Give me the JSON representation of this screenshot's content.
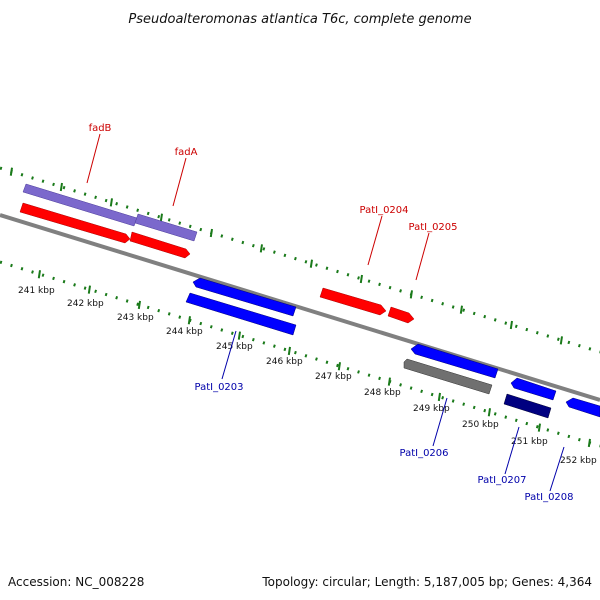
{
  "title": "Pseudoalteromonas atlantica T6c, complete genome",
  "footer": {
    "accession": "Accession: NC_008228",
    "summary": "Topology: circular; Length: 5,187,005 bp; Genes: 4,364"
  },
  "colors": {
    "backbone": "#808080",
    "tick_track": "#1a7a1a",
    "forward_gene": "#ff0000",
    "reverse_gene": "#0000ff",
    "purple_feature": "#7b68cc",
    "gray_feature": "#707070",
    "navy_feature": "#000080",
    "forward_label": "#cc0000",
    "reverse_label": "#0000aa"
  },
  "ticks": [
    {
      "label": "241 kbp"
    },
    {
      "label": "242 kbp"
    },
    {
      "label": "243 kbp"
    },
    {
      "label": "244 kbp"
    },
    {
      "label": "245 kbp"
    },
    {
      "label": "246 kbp"
    },
    {
      "label": "247 kbp"
    },
    {
      "label": "248 kbp"
    },
    {
      "label": "249 kbp"
    },
    {
      "label": "250 kbp"
    },
    {
      "label": "251 kbp"
    },
    {
      "label": "252 kbp"
    }
  ],
  "gene_labels": [
    {
      "name": "fadB",
      "strand": "forward"
    },
    {
      "name": "fadA",
      "strand": "forward"
    },
    {
      "name": "PatI_0204",
      "strand": "forward"
    },
    {
      "name": "PatI_0205",
      "strand": "forward"
    },
    {
      "name": "PatI_0203",
      "strand": "reverse"
    },
    {
      "name": "PatI_0206",
      "strand": "reverse"
    },
    {
      "name": "PatI_0207",
      "strand": "reverse"
    },
    {
      "name": "PatI_0208",
      "strand": "reverse"
    }
  ]
}
